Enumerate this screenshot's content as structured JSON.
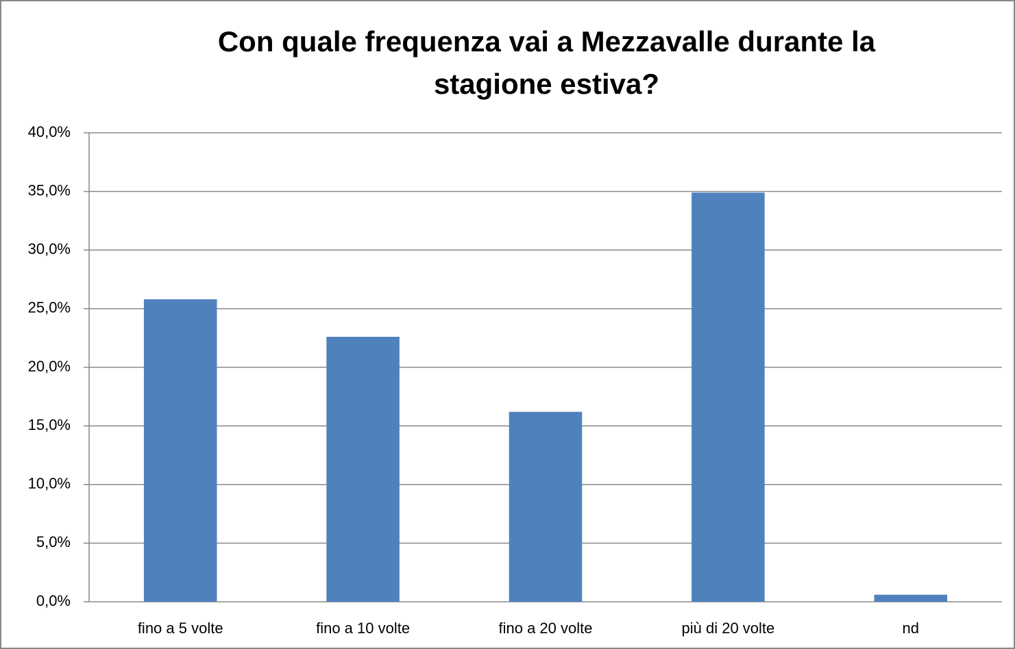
{
  "chart_data": {
    "type": "bar",
    "title": "Con quale frequenza vai a Mezzavalle durante la stagione estiva?",
    "categories": [
      "fino a 5 volte",
      "fino a 10 volte",
      "fino a 20 volte",
      "più di 20 volte",
      "nd"
    ],
    "values": [
      25.8,
      22.6,
      16.2,
      34.9,
      0.6
    ],
    "color": "#4f81bd",
    "ylim": [
      0,
      40
    ],
    "yticks": [
      {
        "value": 0,
        "label": "0,0%"
      },
      {
        "value": 5,
        "label": "5,0%"
      },
      {
        "value": 10,
        "label": "10,0%"
      },
      {
        "value": 15,
        "label": "15,0%"
      },
      {
        "value": 20,
        "label": "20,0%"
      },
      {
        "value": 25,
        "label": "25,0%"
      },
      {
        "value": 30,
        "label": "30,0%"
      },
      {
        "value": 35,
        "label": "35,0%"
      },
      {
        "value": 40,
        "label": "40,0%"
      }
    ],
    "grid": true
  }
}
